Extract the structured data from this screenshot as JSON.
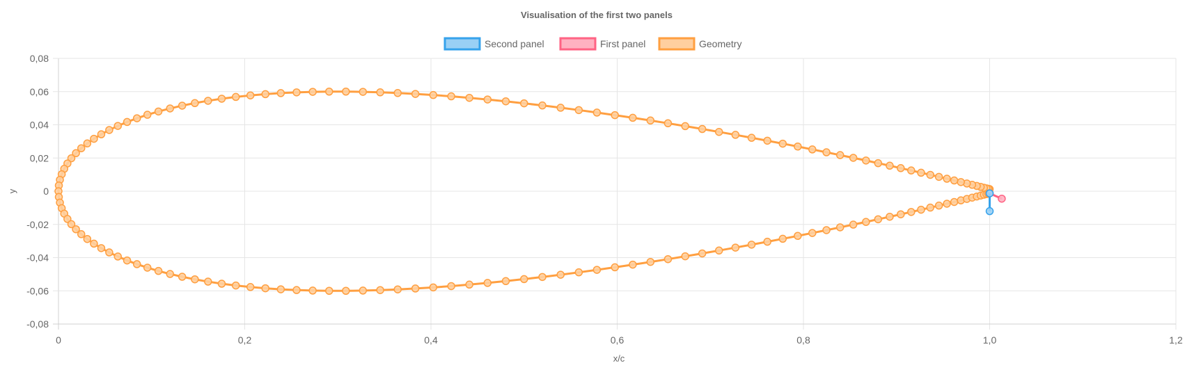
{
  "chart_data": {
    "type": "scatter",
    "title": "Visualisation of the first two panels",
    "xlabel": "x/c",
    "ylabel": "y",
    "xlim": [
      0,
      1.2
    ],
    "ylim": [
      -0.08,
      0.08
    ],
    "xticks": [
      "0",
      "0,2",
      "0,4",
      "0,6",
      "0,8",
      "1,0",
      "1,2"
    ],
    "yticks": [
      "0,08",
      "0,06",
      "0,04",
      "0,02",
      "0",
      "-0,02",
      "-0,04",
      "-0,06",
      "-0,08"
    ],
    "grid": true,
    "legend_position": "top",
    "series": [
      {
        "name": "Second panel",
        "color": "#36a2eb",
        "fill": "#9ad0f5",
        "points": [
          [
            1.0,
            -0.0013
          ],
          [
            1.0,
            -0.012
          ]
        ]
      },
      {
        "name": "First panel",
        "color": "#ff6384",
        "fill": "#ffb1c1",
        "points": [
          [
            1.0,
            -0.0013
          ],
          [
            1.013,
            -0.0045
          ]
        ]
      },
      {
        "name": "Geometry",
        "color": "#ff9f40",
        "fill": "#ffcf9f",
        "generator": "NACA 0012 outline, trailing edge to leading edge and back",
        "points": []
      }
    ]
  }
}
